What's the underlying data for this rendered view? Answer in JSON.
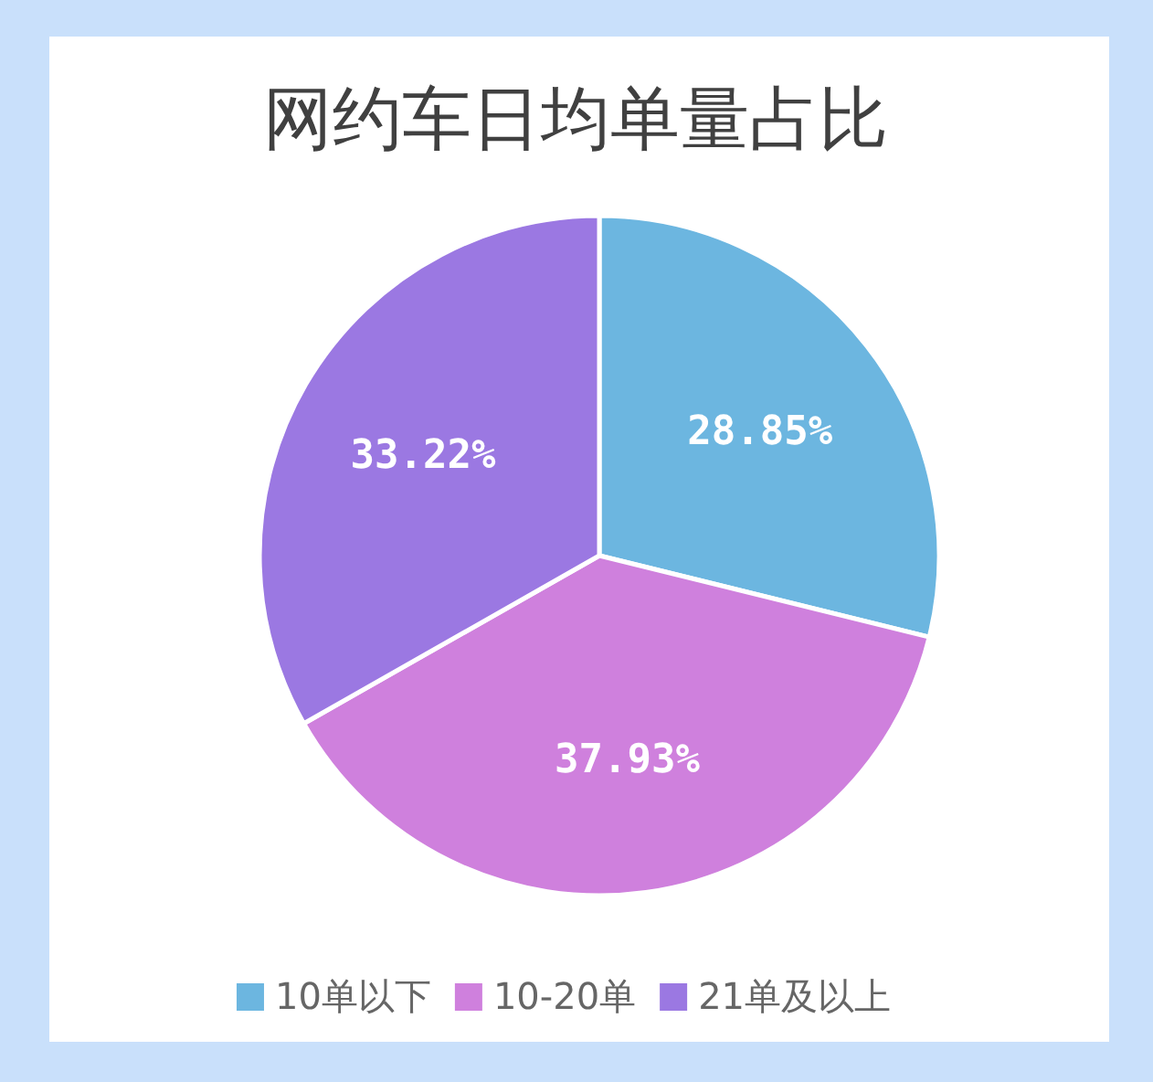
{
  "chart_data": {
    "type": "pie",
    "title": "网约车日均单量占比",
    "categories": [
      "10单以下",
      "10-20单",
      "21单及以上"
    ],
    "values": [
      28.85,
      37.93,
      33.22
    ],
    "value_labels": [
      "28.85%",
      "37.93%",
      "33.22%"
    ],
    "colors": [
      "#6cb6e0",
      "#cf80dd",
      "#9b78e2"
    ],
    "legend": "bottom"
  }
}
